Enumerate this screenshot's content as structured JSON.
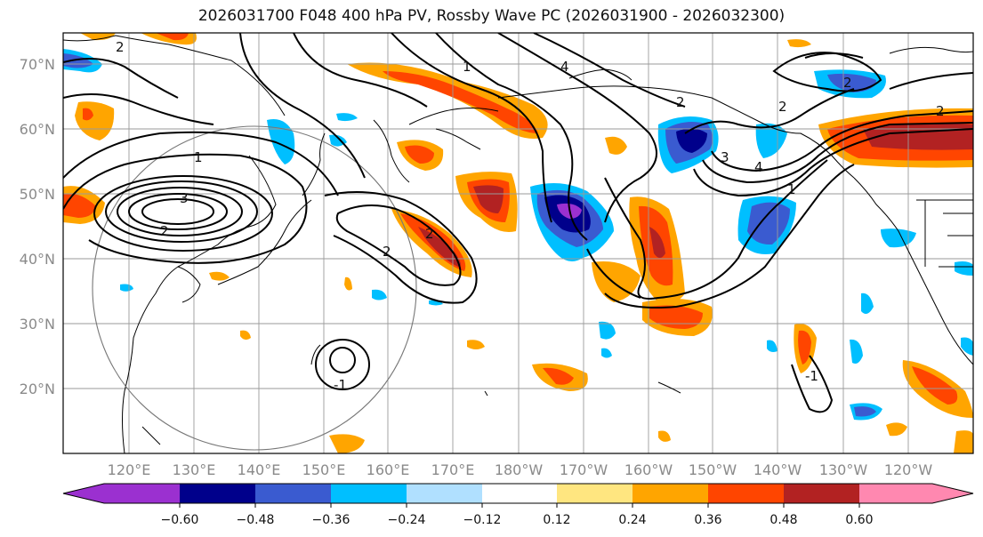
{
  "title": "2026031700 F048 400 hPa PV, Rossby Wave PC (2026031900 - 2026032300)",
  "map": {
    "lat_labels": [
      "70°N",
      "60°N",
      "50°N",
      "40°N",
      "30°N",
      "20°N"
    ],
    "lon_labels": [
      "120°E",
      "130°E",
      "140°E",
      "150°E",
      "160°E",
      "170°E",
      "180°W",
      "170°W",
      "160°W",
      "150°W",
      "140°W",
      "130°W",
      "120°W"
    ],
    "contour_labels": [
      "2",
      "1",
      "-1",
      "2",
      "3",
      "2",
      "4",
      "3",
      "2",
      "4",
      "2",
      "2",
      "1",
      "2",
      "2",
      "1",
      "-1"
    ]
  },
  "colorbar": {
    "tick_labels": [
      "−0.60",
      "−0.48",
      "−0.36",
      "−0.24",
      "−0.12",
      "0.12",
      "0.24",
      "0.36",
      "0.48",
      "0.60"
    ],
    "colors": [
      "#9b30d0",
      "#00008b",
      "#3a5bd0",
      "#00bfff",
      "#b0e0ff",
      "#ffffff",
      "#ffe680",
      "#ffa500",
      "#ff4500",
      "#b22222",
      "#ff88b0"
    ]
  }
}
